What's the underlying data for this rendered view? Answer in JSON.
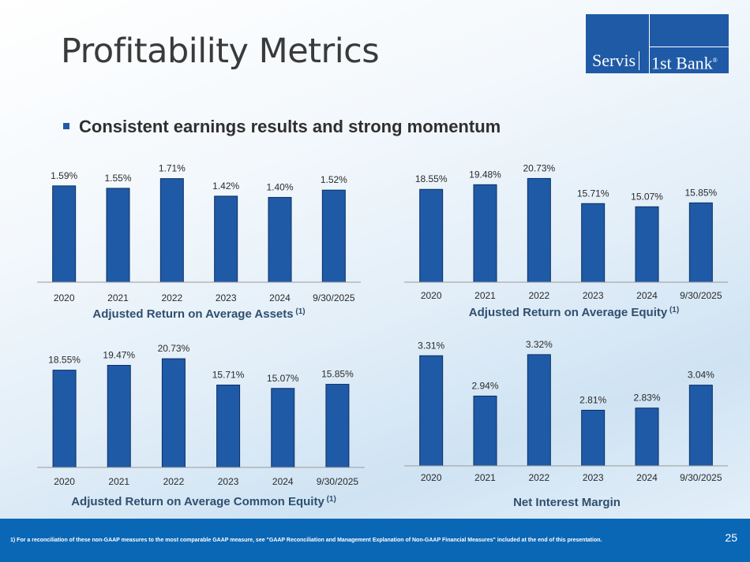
{
  "title": "Profitability Metrics",
  "logo": {
    "part1": "Servis",
    "part2": "1st Bank",
    "reg": "®"
  },
  "bullet": "Consistent earnings results and strong momentum",
  "chart_data": [
    {
      "type": "bar",
      "title": "Adjusted Return on Average Assets",
      "title_sup": "(1)",
      "categories": [
        "2020",
        "2021",
        "2022",
        "2023",
        "2024",
        "9/30/2025"
      ],
      "values": [
        1.59,
        1.55,
        1.71,
        1.42,
        1.4,
        1.52
      ],
      "labels": [
        "1.59%",
        "1.55%",
        "1.71%",
        "1.42%",
        "1.40%",
        "1.52%"
      ],
      "ylim": [
        0,
        1.9
      ]
    },
    {
      "type": "bar",
      "title": "Adjusted Return on Average Equity",
      "title_sup": "(1)",
      "categories": [
        "2020",
        "2021",
        "2022",
        "2023",
        "2024",
        "9/30/2025"
      ],
      "values": [
        18.55,
        19.48,
        20.73,
        15.71,
        15.07,
        15.85
      ],
      "labels": [
        "18.55%",
        "19.48%",
        "20.73%",
        "15.71%",
        "15.07%",
        "15.85%"
      ],
      "ylim": [
        0,
        23
      ]
    },
    {
      "type": "bar",
      "title": "Adjusted Return on Average Common Equity",
      "title_sup": "(1)",
      "categories": [
        "2020",
        "2021",
        "2022",
        "2023",
        "2024",
        "9/30/2025"
      ],
      "values": [
        18.55,
        19.47,
        20.73,
        15.71,
        15.07,
        15.85
      ],
      "labels": [
        "18.55%",
        "19.47%",
        "20.73%",
        "15.71%",
        "15.07%",
        "15.85%"
      ],
      "ylim": [
        0,
        23
      ]
    },
    {
      "type": "bar",
      "title": "Net Interest Margin",
      "title_sup": "",
      "categories": [
        "2020",
        "2021",
        "2022",
        "2023",
        "2024",
        "9/30/2025"
      ],
      "values": [
        3.31,
        2.94,
        3.32,
        2.81,
        2.83,
        3.04
      ],
      "labels": [
        "3.31%",
        "2.94%",
        "3.32%",
        "2.81%",
        "2.83%",
        "3.04%"
      ],
      "ylim": [
        2.3,
        3.5
      ]
    }
  ],
  "footer": {
    "footnote": "1)      For a reconciliation of these non-GAAP measures to the most comparable GAAP measure, see \"GAAP Reconciliation and Management Explanation of Non-GAAP Financial Measures\" included at the end of this presentation.",
    "page": "25"
  },
  "colors": {
    "bar": "#1f5aa6",
    "bar_edge": "#0b2f66",
    "footer": "#0a67b5"
  }
}
